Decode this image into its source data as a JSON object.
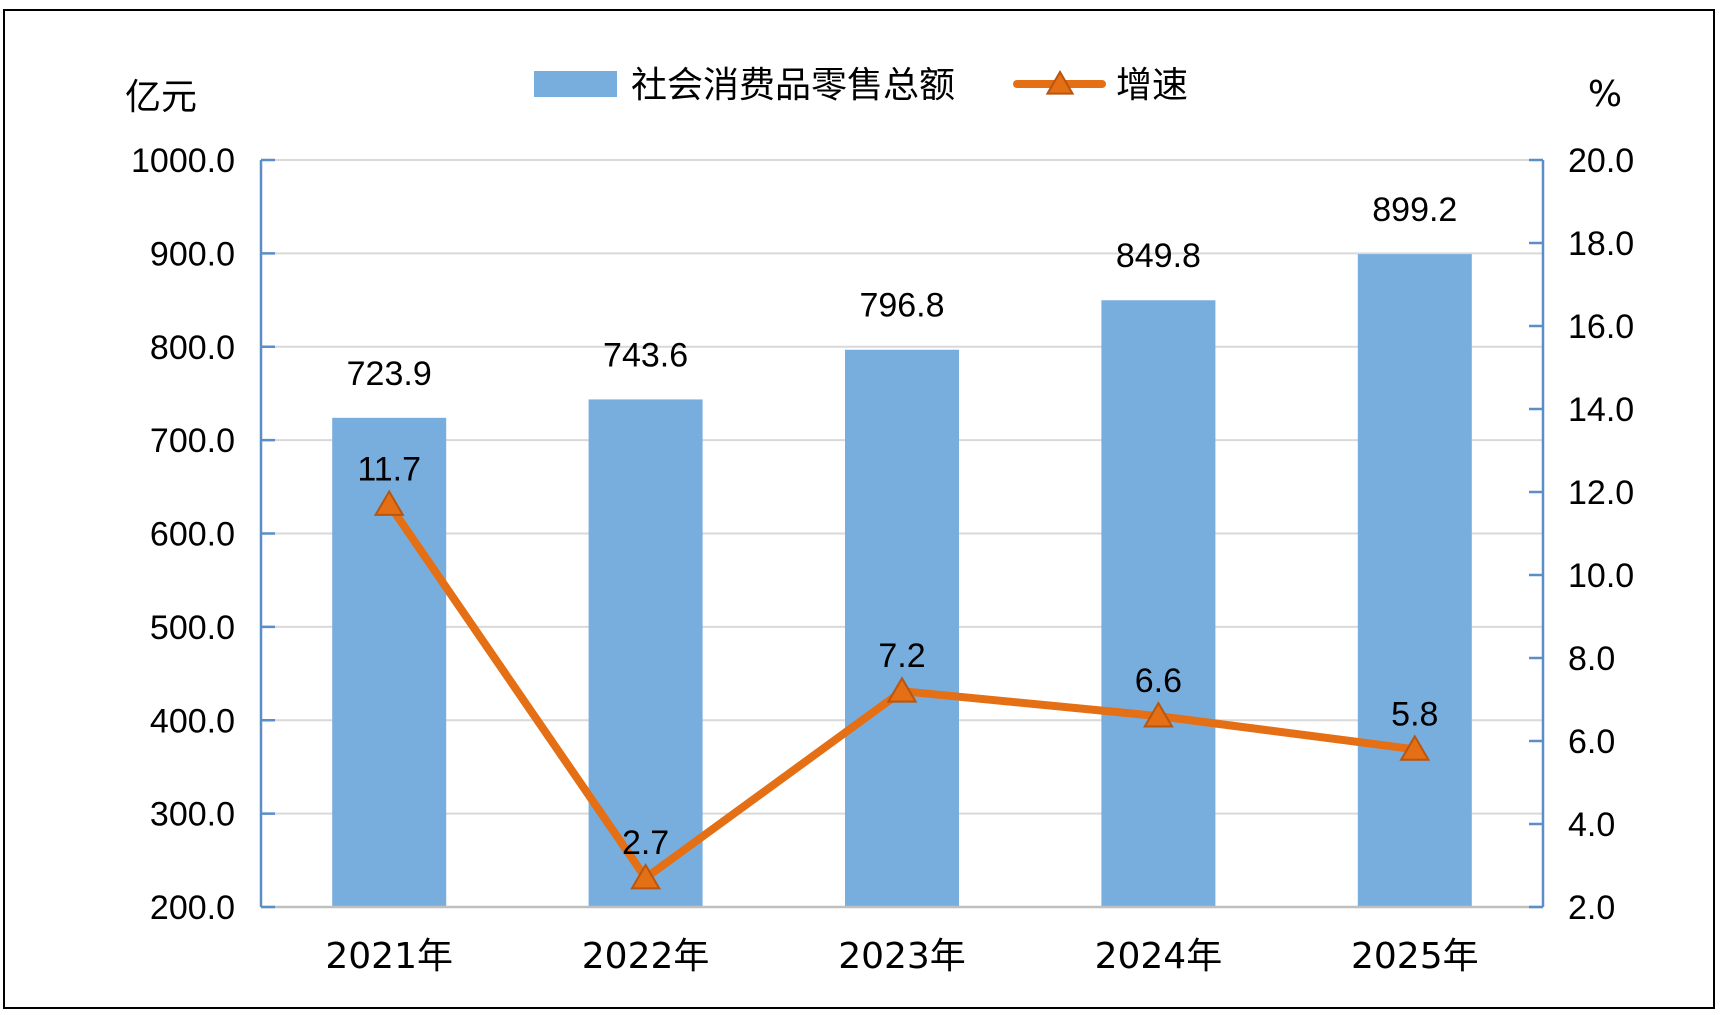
{
  "chart_data": {
    "type": "bar",
    "categories": [
      "2021年",
      "2022年",
      "2023年",
      "2024年",
      "2025年"
    ],
    "series": [
      {
        "name": "社会消费品零售总额",
        "type": "bar",
        "axis": "left",
        "values": [
          723.9,
          743.6,
          796.8,
          849.8,
          899.2
        ]
      },
      {
        "name": "增速",
        "type": "line",
        "axis": "right",
        "marker": "triangle",
        "values": [
          11.7,
          2.7,
          7.2,
          6.6,
          5.8
        ]
      }
    ],
    "left_axis": {
      "unit": "亿元",
      "range": [
        200,
        1000
      ],
      "ticks": [
        "200.0",
        "300.0",
        "400.0",
        "500.0",
        "600.0",
        "700.0",
        "800.0",
        "900.0",
        "1000.0"
      ]
    },
    "right_axis": {
      "unit": "%",
      "range": [
        2,
        20
      ],
      "ticks": [
        "2.0",
        "4.0",
        "6.0",
        "8.0",
        "10.0",
        "12.0",
        "14.0",
        "16.0",
        "18.0",
        "20.0"
      ]
    },
    "bar_labels": [
      "723.9",
      "743.6",
      "796.8",
      "849.8",
      "899.2"
    ],
    "line_labels": [
      "11.7",
      "2.7",
      "7.2",
      "6.6",
      "5.8"
    ],
    "grid": true,
    "legend_position": "top-center",
    "colors": {
      "bar": "#78aede",
      "line": "#e46f14",
      "marker_stroke": "#b85510",
      "axis": "#5b8ec6",
      "grid": "#d9d9d9"
    }
  }
}
